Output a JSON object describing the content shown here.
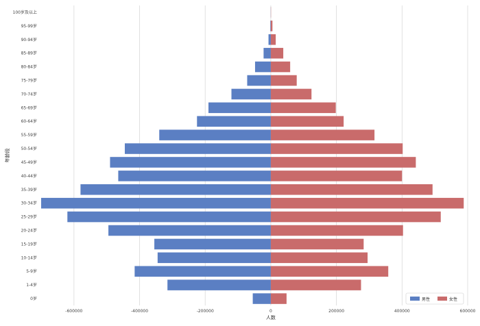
{
  "chart_data": {
    "type": "bar",
    "orientation": "horizontal",
    "stacking": "diverging",
    "title": "",
    "xlabel": "人数",
    "ylabel": "年龄段",
    "xlim": [
      -700000,
      600000
    ],
    "x_ticks": [
      -600000,
      -400000,
      -200000,
      0,
      200000,
      400000,
      600000
    ],
    "x_tick_labels": [
      "-600000",
      "-400000",
      "-200000",
      "0",
      "200000",
      "400000",
      "600000"
    ],
    "grid": "vertical",
    "legend_position": "bottom-right",
    "categories": [
      "0岁",
      "1-4岁",
      "5-9岁",
      "10-14岁",
      "15-19岁",
      "20-24岁",
      "25-29岁",
      "30-34岁",
      "35-39岁",
      "40-44岁",
      "45-49岁",
      "50-54岁",
      "55-59岁",
      "60-64岁",
      "65-69岁",
      "70-74岁",
      "75-79岁",
      "80-84岁",
      "85-89岁",
      "90-94岁",
      "95-99岁",
      "100岁及以上"
    ],
    "series": [
      {
        "name": "男性",
        "color": "#5b7fc3",
        "values": [
          -55000,
          -315000,
          -415000,
          -345000,
          -355000,
          -495000,
          -620000,
          -700000,
          -580000,
          -465000,
          -490000,
          -445000,
          -340000,
          -225000,
          -190000,
          -120000,
          -72000,
          -48000,
          -22000,
          -7000,
          -1500,
          -300
        ]
      },
      {
        "name": "女性",
        "color": "#c96b6b",
        "values": [
          48000,
          275000,
          358000,
          295000,
          283000,
          403000,
          518000,
          588000,
          493000,
          400000,
          442000,
          402000,
          316000,
          222000,
          198000,
          124000,
          79000,
          59000,
          38000,
          15000,
          5000,
          600
        ]
      }
    ]
  }
}
